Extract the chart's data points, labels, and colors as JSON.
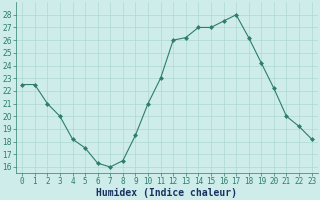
{
  "x": [
    0,
    1,
    2,
    3,
    4,
    5,
    6,
    7,
    8,
    9,
    10,
    11,
    12,
    13,
    14,
    15,
    16,
    17,
    18,
    19,
    20,
    21,
    22,
    23
  ],
  "y": [
    22.5,
    22.5,
    21.0,
    20.0,
    18.2,
    17.5,
    16.3,
    16.0,
    16.5,
    18.5,
    21.0,
    23.0,
    26.0,
    26.2,
    27.0,
    27.0,
    27.5,
    28.0,
    26.2,
    24.2,
    22.2,
    20.0,
    19.2,
    18.2
  ],
  "line_color": "#2e7d6e",
  "marker": "D",
  "marker_size": 2.0,
  "bg_color": "#ceecea",
  "grid_color": "#aed8d4",
  "xlabel": "Humidex (Indice chaleur)",
  "ylim": [
    15.5,
    29.0
  ],
  "yticks": [
    16,
    17,
    18,
    19,
    20,
    21,
    22,
    23,
    24,
    25,
    26,
    27,
    28
  ],
  "xtick_labels": [
    "0",
    "1",
    "2",
    "3",
    "4",
    "5",
    "6",
    "7",
    "8",
    "9",
    "10",
    "11",
    "12",
    "13",
    "14",
    "15",
    "16",
    "17",
    "18",
    "19",
    "20",
    "21",
    "22",
    "23"
  ],
  "xlim": [
    -0.5,
    23.5
  ],
  "tick_fontsize": 5.5,
  "xlabel_fontsize": 7.0,
  "xlabel_color": "#1a3060",
  "line_width": 0.8
}
